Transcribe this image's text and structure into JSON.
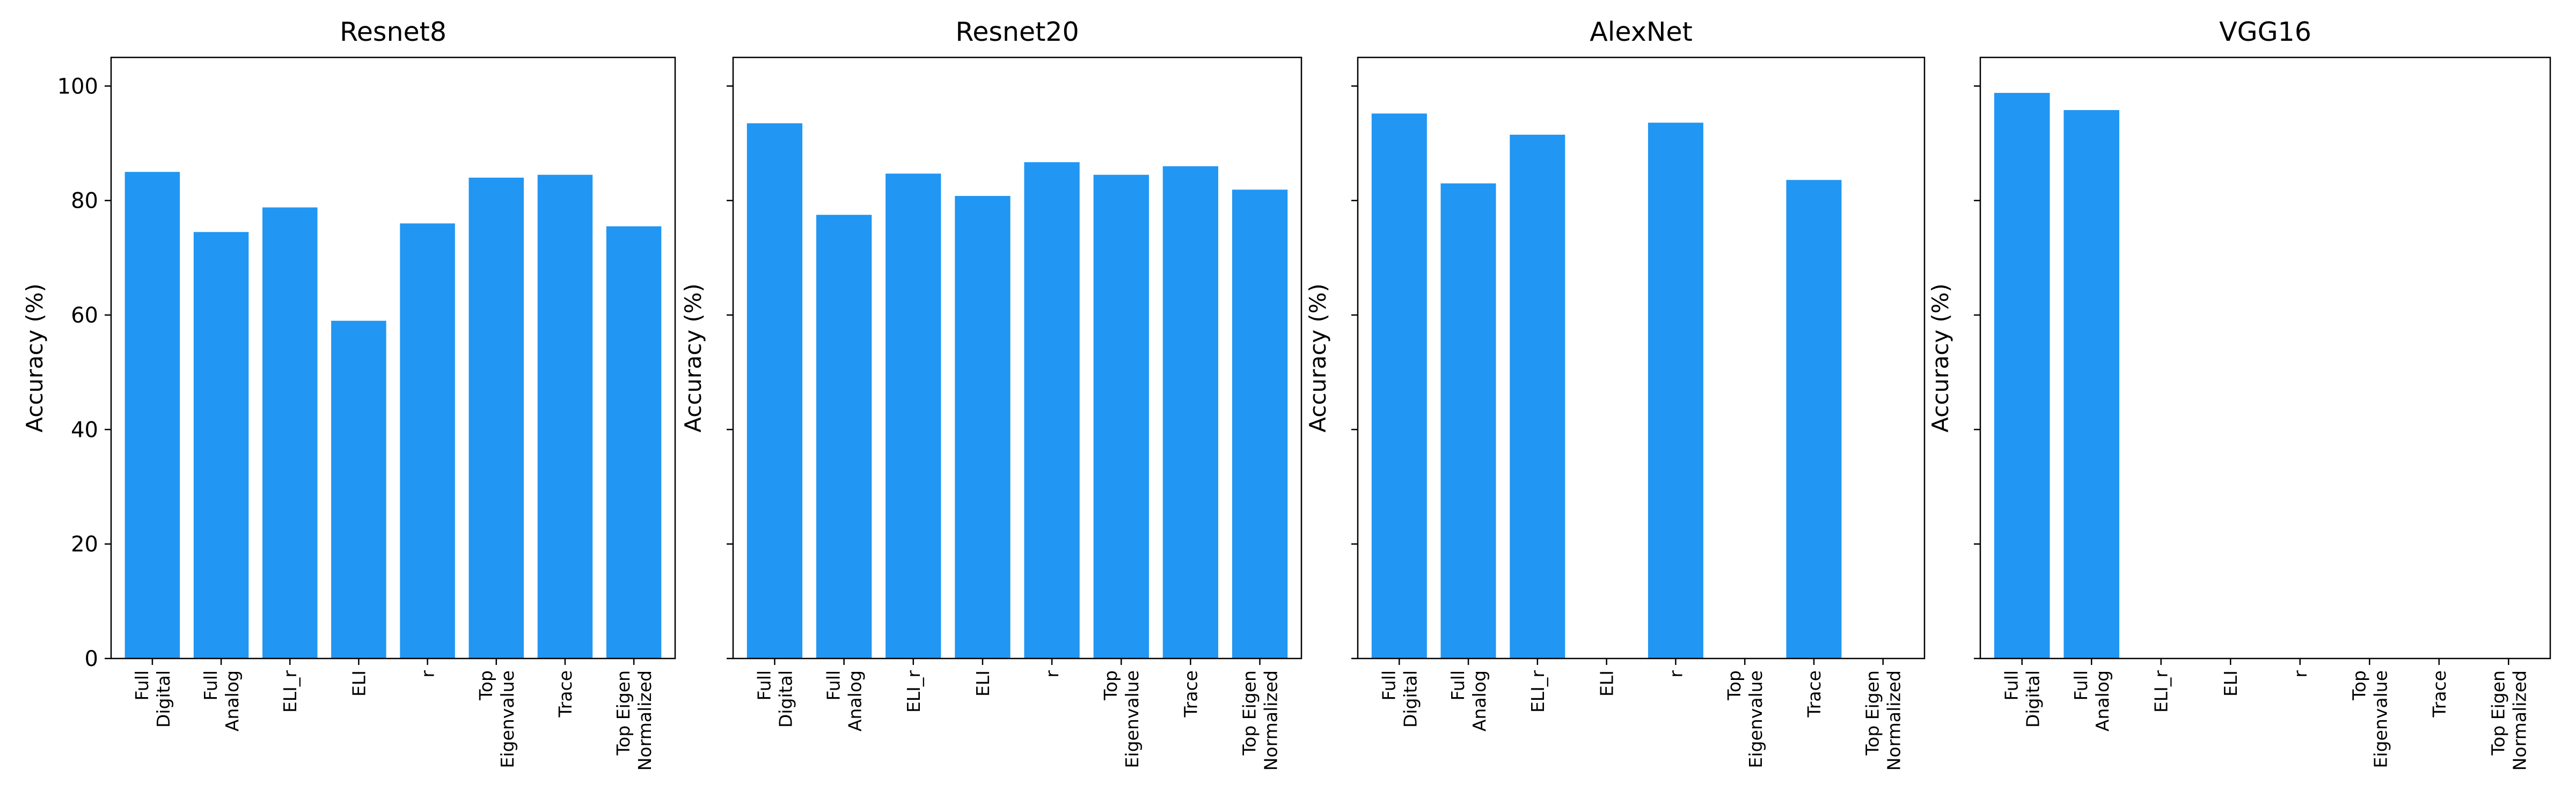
{
  "figure": {
    "ylabel": "Accuracy (%)",
    "yticks": [
      0,
      20,
      40,
      60,
      80,
      100
    ],
    "ylim": [
      0,
      105
    ],
    "bar_color": "#2196f3"
  },
  "chart_data": [
    {
      "type": "bar",
      "title": "Resnet8",
      "categories": [
        [
          "Full",
          "Digital"
        ],
        [
          "Full",
          "Analog"
        ],
        [
          "ELI_r"
        ],
        [
          "ELI"
        ],
        [
          "r"
        ],
        [
          "Top",
          "Eigenvalue"
        ],
        [
          "Trace"
        ],
        [
          "Top Eigen",
          "Normalized"
        ]
      ],
      "values": [
        85.0,
        74.5,
        78.8,
        59.0,
        76.0,
        84.0,
        84.5,
        75.5
      ],
      "xlabel": "",
      "ylabel": "Accuracy (%)",
      "ylim": [
        0,
        105
      ]
    },
    {
      "type": "bar",
      "title": "Resnet20",
      "categories": [
        [
          "Full",
          "Digital"
        ],
        [
          "Full",
          "Analog"
        ],
        [
          "ELI_r"
        ],
        [
          "ELI"
        ],
        [
          "r"
        ],
        [
          "Top",
          "Eigenvalue"
        ],
        [
          "Trace"
        ],
        [
          "Top Eigen",
          "Normalized"
        ]
      ],
      "values": [
        93.5,
        77.5,
        84.7,
        80.8,
        86.7,
        84.5,
        86.0,
        81.9
      ],
      "xlabel": "",
      "ylabel": "Accuracy (%)",
      "ylim": [
        0,
        105
      ]
    },
    {
      "type": "bar",
      "title": "AlexNet",
      "categories": [
        [
          "Full",
          "Digital"
        ],
        [
          "Full",
          "Analog"
        ],
        [
          "ELI_r"
        ],
        [
          "ELI"
        ],
        [
          "r"
        ],
        [
          "Top",
          "Eigenvalue"
        ],
        [
          "Trace"
        ],
        [
          "Top Eigen",
          "Normalized"
        ]
      ],
      "values": [
        95.2,
        83.0,
        91.5,
        null,
        93.6,
        null,
        83.6,
        null
      ],
      "xlabel": "",
      "ylabel": "Accuracy (%)",
      "ylim": [
        0,
        105
      ]
    },
    {
      "type": "bar",
      "title": "VGG16",
      "categories": [
        [
          "Full",
          "Digital"
        ],
        [
          "Full",
          "Analog"
        ],
        [
          "ELI_r"
        ],
        [
          "ELI"
        ],
        [
          "r"
        ],
        [
          "Top",
          "Eigenvalue"
        ],
        [
          "Trace"
        ],
        [
          "Top Eigen",
          "Normalized"
        ]
      ],
      "values": [
        98.8,
        95.8,
        null,
        null,
        null,
        null,
        null,
        null
      ],
      "xlabel": "",
      "ylabel": "Accuracy (%)",
      "ylim": [
        0,
        105
      ]
    }
  ]
}
